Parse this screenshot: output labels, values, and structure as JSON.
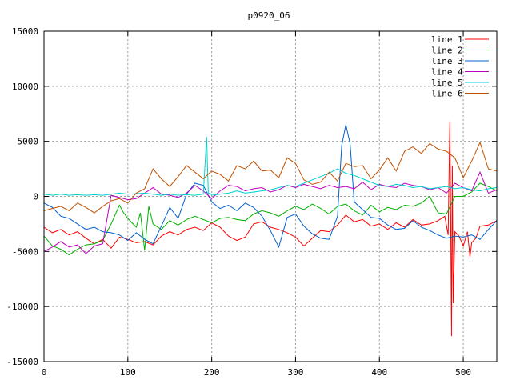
{
  "chart_data": {
    "type": "line",
    "title": "p0920_06",
    "xlabel": "",
    "ylabel": "",
    "xlim": [
      0,
      540
    ],
    "ylim": [
      -15000,
      15000
    ],
    "xticks": [
      0,
      100,
      200,
      300,
      400,
      500
    ],
    "yticks": [
      -15000,
      -10000,
      -5000,
      0,
      5000,
      10000,
      15000
    ],
    "grid": true,
    "legend_position": "top-right",
    "series": [
      {
        "name": "line 1",
        "color": "#ff0000",
        "x": [
          0,
          10,
          20,
          30,
          40,
          50,
          60,
          70,
          80,
          90,
          100,
          110,
          120,
          130,
          140,
          150,
          160,
          170,
          180,
          190,
          200,
          210,
          220,
          230,
          240,
          250,
          260,
          270,
          280,
          290,
          300,
          310,
          320,
          330,
          340,
          350,
          360,
          370,
          380,
          390,
          400,
          410,
          420,
          430,
          440,
          450,
          460,
          470,
          478,
          482,
          484,
          485,
          486,
          487,
          488,
          490,
          495,
          500,
          505,
          508,
          510,
          515,
          520,
          530,
          540
        ],
        "y": [
          -2800,
          -3300,
          -3000,
          -3500,
          -3200,
          -3800,
          -4300,
          -3900,
          -4700,
          -3700,
          -3900,
          -4200,
          -4100,
          -4400,
          -3600,
          -3200,
          -3500,
          -3000,
          -2800,
          -3100,
          -2400,
          -2800,
          -3600,
          -4000,
          -3700,
          -2500,
          -2300,
          -2800,
          -3000,
          -3300,
          -3700,
          -4500,
          -3800,
          -3100,
          -3200,
          -2600,
          -1700,
          -2300,
          -2100,
          -2700,
          -2500,
          -3000,
          -2400,
          -2800,
          -2100,
          -2600,
          -2500,
          -2200,
          -1800,
          -3500,
          6800,
          -2000,
          -12700,
          2800,
          -9700,
          -3200,
          -3600,
          -4500,
          -3200,
          -5500,
          -4200,
          -3800,
          -2700,
          -2600,
          -2200
        ]
      },
      {
        "name": "line 2",
        "color": "#00b000",
        "x": [
          0,
          10,
          20,
          30,
          40,
          50,
          60,
          70,
          80,
          90,
          95,
          100,
          110,
          115,
          120,
          125,
          130,
          140,
          150,
          160,
          170,
          180,
          190,
          200,
          210,
          220,
          230,
          240,
          250,
          260,
          270,
          280,
          290,
          300,
          310,
          320,
          330,
          340,
          350,
          360,
          370,
          380,
          390,
          400,
          410,
          420,
          430,
          440,
          450,
          460,
          470,
          480,
          490,
          500,
          510,
          520,
          530,
          540
        ],
        "y": [
          -3600,
          -4500,
          -4800,
          -5300,
          -4800,
          -4400,
          -4300,
          -4000,
          -2500,
          -800,
          -1500,
          -2000,
          -2800,
          -1500,
          -4900,
          -900,
          -2500,
          -3000,
          -2200,
          -2600,
          -2100,
          -1800,
          -2100,
          -2400,
          -2000,
          -1900,
          -2100,
          -2200,
          -1600,
          -1300,
          -1500,
          -1800,
          -1300,
          -900,
          -1200,
          -700,
          -1100,
          -1600,
          -900,
          -700,
          -1300,
          -1700,
          -800,
          -1400,
          -1000,
          -1200,
          -800,
          -900,
          -600,
          0,
          -1500,
          -1600,
          0,
          0,
          400,
          1200,
          900,
          500
        ]
      },
      {
        "name": "line 3",
        "color": "#0060d0",
        "x": [
          0,
          10,
          20,
          30,
          40,
          50,
          60,
          70,
          80,
          90,
          100,
          110,
          120,
          130,
          140,
          150,
          160,
          170,
          180,
          190,
          200,
          210,
          220,
          230,
          240,
          250,
          260,
          270,
          280,
          290,
          300,
          310,
          320,
          330,
          340,
          350,
          355,
          360,
          365,
          370,
          380,
          390,
          400,
          410,
          420,
          430,
          440,
          450,
          460,
          470,
          480,
          490,
          500,
          510,
          520,
          530,
          540
        ],
        "y": [
          -600,
          -1000,
          -1800,
          -2000,
          -2500,
          -3000,
          -2800,
          -3200,
          -3300,
          -3500,
          -4000,
          -3300,
          -3900,
          -4300,
          -2700,
          -1000,
          -2000,
          200,
          1200,
          1000,
          -500,
          -1100,
          -800,
          -1300,
          -600,
          -1000,
          -1800,
          -3100,
          -4600,
          -1900,
          -1600,
          -2700,
          -3400,
          -3800,
          -3900,
          -1800,
          4600,
          6500,
          4800,
          -500,
          -1200,
          -1900,
          -2000,
          -2600,
          -3000,
          -2900,
          -2200,
          -2800,
          -3100,
          -3500,
          -3800,
          -3600,
          -3700,
          -3500,
          -3900,
          -3000,
          -2200
        ]
      },
      {
        "name": "line 4",
        "color": "#c000c0",
        "x": [
          0,
          10,
          20,
          30,
          40,
          50,
          60,
          70,
          80,
          90,
          100,
          110,
          120,
          130,
          140,
          150,
          160,
          170,
          180,
          190,
          200,
          210,
          220,
          230,
          240,
          250,
          260,
          270,
          280,
          290,
          300,
          310,
          320,
          330,
          340,
          350,
          360,
          370,
          380,
          390,
          400,
          410,
          420,
          430,
          440,
          450,
          460,
          470,
          480,
          490,
          500,
          510,
          520,
          530,
          540
        ],
        "y": [
          -5000,
          -4600,
          -4100,
          -4600,
          -4400,
          -5200,
          -4500,
          -4300,
          100,
          -100,
          -300,
          -200,
          300,
          800,
          200,
          100,
          -100,
          300,
          1000,
          500,
          -200,
          500,
          1000,
          900,
          500,
          700,
          800,
          400,
          600,
          1000,
          800,
          1100,
          900,
          700,
          1000,
          800,
          900,
          700,
          1300,
          600,
          1100,
          900,
          800,
          1200,
          1000,
          900,
          600,
          800,
          300,
          1200,
          800,
          500,
          2200,
          300,
          600
        ]
      },
      {
        "name": "line 5",
        "color": "#00d0d0",
        "x": [
          0,
          10,
          20,
          30,
          40,
          50,
          60,
          70,
          80,
          90,
          100,
          110,
          120,
          130,
          140,
          150,
          160,
          170,
          180,
          190,
          194,
          196,
          198,
          200,
          210,
          220,
          230,
          240,
          250,
          260,
          270,
          280,
          290,
          300,
          310,
          320,
          330,
          340,
          350,
          360,
          370,
          380,
          390,
          400,
          410,
          420,
          430,
          440,
          450,
          460,
          470,
          480,
          490,
          500,
          510,
          520,
          530,
          540
        ],
        "y": [
          200,
          100,
          200,
          100,
          150,
          100,
          150,
          100,
          200,
          300,
          200,
          250,
          300,
          200,
          100,
          200,
          100,
          150,
          100,
          200,
          5400,
          200,
          300,
          100,
          200,
          300,
          500,
          300,
          400,
          500,
          600,
          800,
          1000,
          900,
          1200,
          1500,
          1800,
          2100,
          2500,
          2100,
          1900,
          1600,
          1300,
          1000,
          900,
          1100,
          1000,
          800,
          900,
          700,
          800,
          900,
          700,
          800,
          600,
          500,
          700,
          800
        ]
      },
      {
        "name": "line 6",
        "color": "#c05000",
        "x": [
          0,
          10,
          20,
          30,
          40,
          50,
          60,
          70,
          80,
          90,
          100,
          110,
          120,
          130,
          140,
          150,
          160,
          170,
          180,
          190,
          200,
          210,
          220,
          230,
          240,
          250,
          260,
          270,
          280,
          290,
          300,
          310,
          320,
          330,
          340,
          350,
          360,
          370,
          380,
          390,
          400,
          410,
          420,
          430,
          440,
          450,
          460,
          470,
          480,
          490,
          500,
          510,
          520,
          530,
          540
        ],
        "y": [
          -1300,
          -1100,
          -900,
          -1300,
          -600,
          -1000,
          -1500,
          -900,
          -400,
          -200,
          -600,
          300,
          700,
          2500,
          1600,
          900,
          1800,
          2800,
          2200,
          1600,
          2300,
          2000,
          1400,
          2800,
          2500,
          3200,
          2300,
          2400,
          1700,
          3500,
          3000,
          1500,
          1100,
          1300,
          2200,
          1400,
          3000,
          2700,
          2800,
          1600,
          2400,
          3500,
          2300,
          4100,
          4500,
          3900,
          4800,
          4300,
          4100,
          3500,
          1700,
          3200,
          4900,
          2500,
          2300
        ]
      }
    ]
  }
}
